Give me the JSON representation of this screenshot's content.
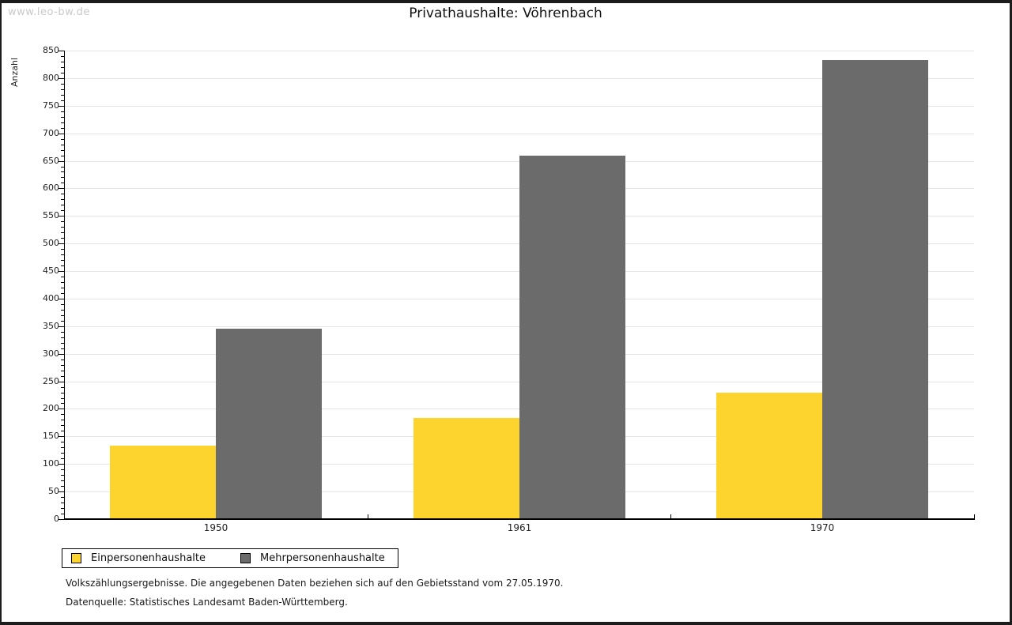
{
  "page": {
    "watermark": "www.leo-bw.de",
    "footnote_line1": "Volkszählungsergebnisse. Die angegebenen Daten beziehen sich auf den Gebietsstand vom 27.05.1970.",
    "footnote_line2": "Datenquelle: Statistisches Landesamt Baden-Württemberg."
  },
  "chart_data": {
    "type": "bar",
    "title": "Privathaushalte: Vöhrenbach",
    "xlabel": "",
    "ylabel": "Anzahl",
    "categories": [
      "1950",
      "1961",
      "1970"
    ],
    "series": [
      {
        "name": "Einpersonenhaushalte",
        "color": "#FDD32D",
        "values": [
          134,
          183,
          229
        ]
      },
      {
        "name": "Mehrpersonenhaushalte",
        "color": "#6B6B6B",
        "values": [
          346,
          659,
          833
        ]
      }
    ],
    "ylim": [
      0,
      850
    ],
    "ytick_step": 50,
    "ytick_minor_step": 10,
    "grid": true,
    "gridline_color": "#e4e4e4",
    "legend_position": "bottom-left"
  }
}
